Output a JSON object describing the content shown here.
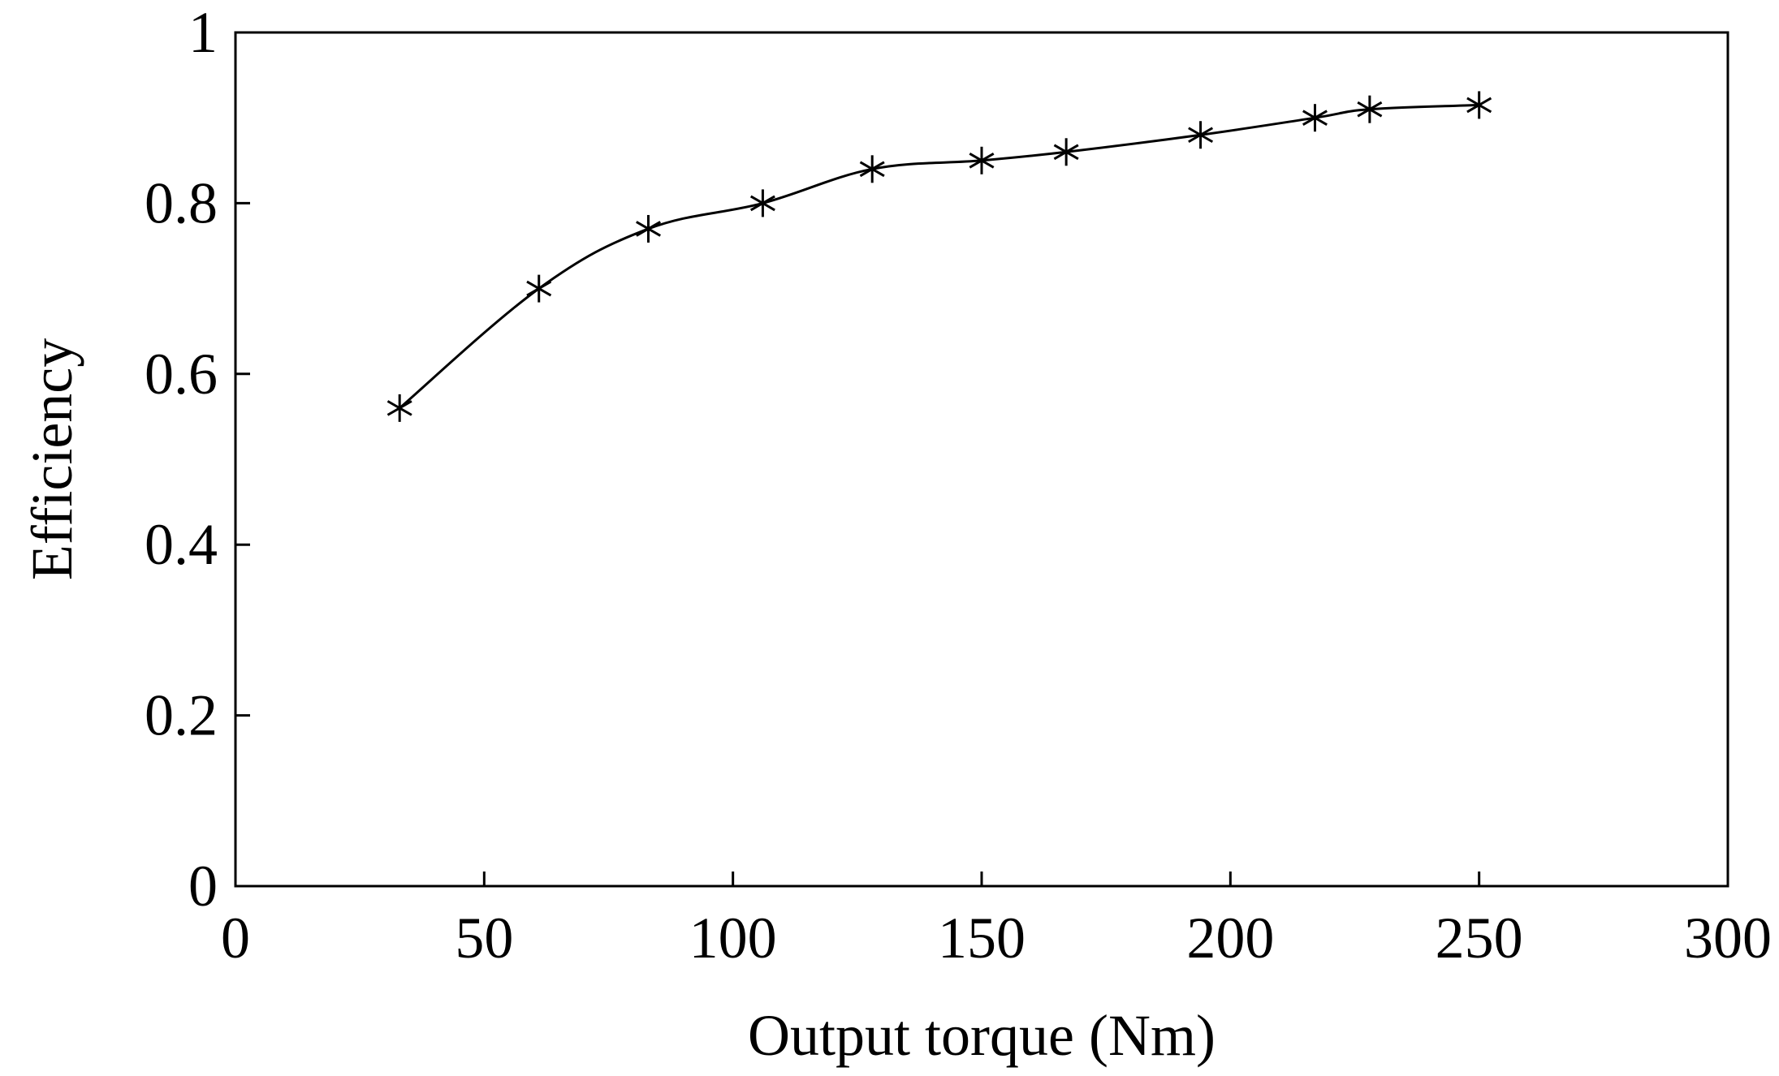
{
  "chart_data": {
    "type": "line",
    "title": "",
    "xlabel": "Output torque (Nm)",
    "ylabel": "Efficiency",
    "xlim": [
      0,
      300
    ],
    "ylim": [
      0,
      1
    ],
    "x_ticks": [
      0,
      50,
      100,
      150,
      200,
      250,
      300
    ],
    "y_ticks": [
      0,
      0.2,
      0.4,
      0.6,
      0.8,
      1
    ],
    "x_tick_labels": [
      "0",
      "50",
      "100",
      "150",
      "200",
      "250",
      "300"
    ],
    "y_tick_labels": [
      "0",
      "0.2",
      "0.4",
      "0.6",
      "0.8",
      "1"
    ],
    "grid": false,
    "legend": "none",
    "line_color": "#000000",
    "marker": "asterisk",
    "series": [
      {
        "x": [
          33,
          61,
          83,
          106,
          128,
          150,
          167,
          194,
          217,
          228,
          250
        ],
        "y": [
          0.56,
          0.7,
          0.77,
          0.8,
          0.84,
          0.85,
          0.86,
          0.88,
          0.9,
          0.91,
          0.915
        ]
      }
    ]
  }
}
